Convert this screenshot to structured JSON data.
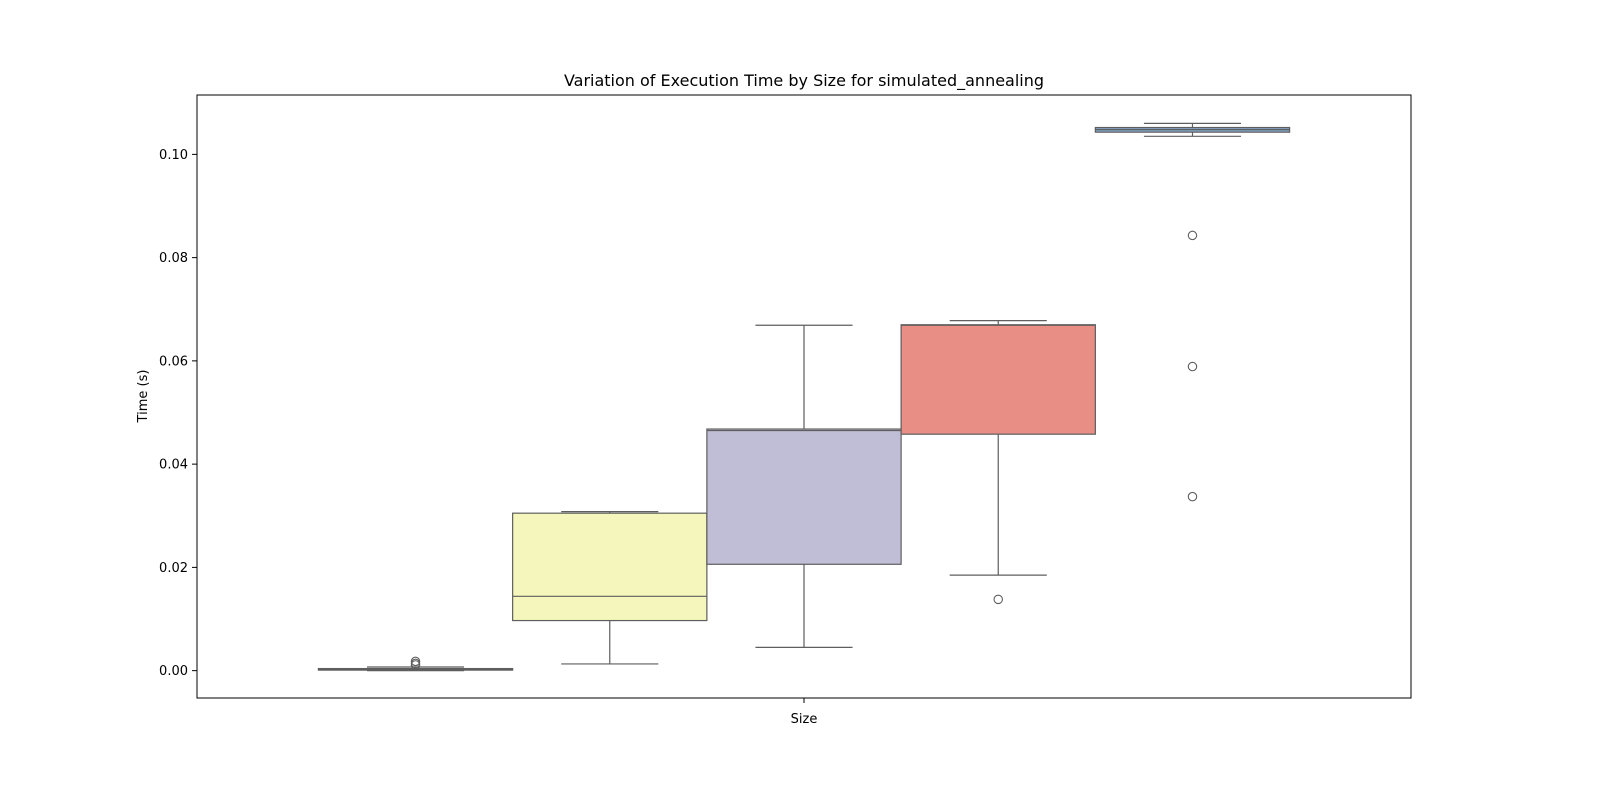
{
  "chart_data": {
    "type": "box",
    "title": "Variation of Execution Time by Size for simulated_annealing",
    "xlabel": "Size",
    "ylabel": "Time (s)",
    "ylim": [
      -0.0053,
      0.1115
    ],
    "yticks": [
      0.0,
      0.02,
      0.04,
      0.06,
      0.08,
      0.1
    ],
    "ytick_labels": [
      "0.00",
      "0.02",
      "0.04",
      "0.06",
      "0.08",
      "0.10"
    ],
    "grid": false,
    "legend": "none",
    "series": [
      {
        "color": "#8dd3c7",
        "whislo": 0.0,
        "q1": 0.0001,
        "med": 0.0002,
        "q3": 0.0004,
        "whishi": 0.0007,
        "fliers": [
          0.0011,
          0.0014,
          0.0018
        ]
      },
      {
        "color": "#f5f6bb",
        "whislo": 0.0013,
        "q1": 0.0097,
        "med": 0.0144,
        "q3": 0.0305,
        "whishi": 0.0308,
        "fliers": []
      },
      {
        "color": "#c0bdd6",
        "whislo": 0.0045,
        "q1": 0.0206,
        "med": 0.0465,
        "q3": 0.0468,
        "whishi": 0.0669,
        "fliers": []
      },
      {
        "color": "#e98e85",
        "whislo": 0.0185,
        "q1": 0.0458,
        "med": 0.0669,
        "q3": 0.067,
        "whishi": 0.0678,
        "fliers": [
          0.0138
        ]
      },
      {
        "color": "#84a6c6",
        "whislo": 0.1035,
        "q1": 0.1043,
        "med": 0.1048,
        "q3": 0.1052,
        "whishi": 0.106,
        "fliers": [
          0.0843,
          0.0589,
          0.0337
        ]
      }
    ]
  }
}
